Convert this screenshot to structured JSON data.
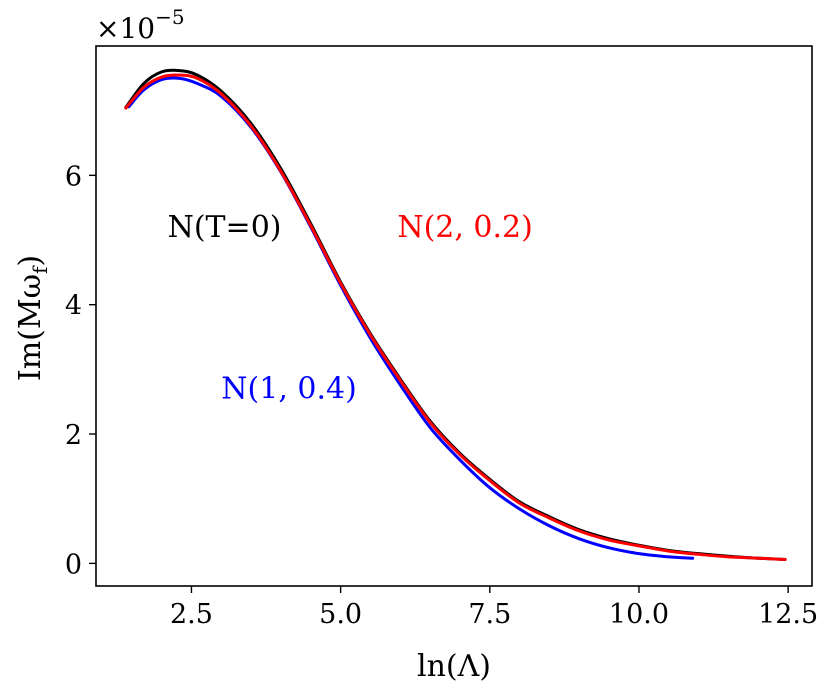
{
  "chart_data": {
    "type": "line",
    "title": "",
    "xlabel": "ln(Λ)",
    "ylabel": "Im(Mω",
    "ylabel_sub": "f",
    "ylabel_close": ")",
    "y_multiplier_base": "×10",
    "y_multiplier_exp": "−5",
    "xlim": [
      0.9,
      12.9
    ],
    "ylim": [
      -0.35,
      8.0
    ],
    "xticks": [
      2.5,
      5.0,
      7.5,
      10.0,
      12.5
    ],
    "xtick_labels": [
      "2.5",
      "5.0",
      "7.5",
      "10.0",
      "12.5"
    ],
    "yticks": [
      0,
      2,
      4,
      6
    ],
    "ytick_labels": [
      "0",
      "2",
      "4",
      "6"
    ],
    "grid": false,
    "legend": "none",
    "series": [
      {
        "name": "N(T=0)",
        "color": "#000000",
        "x": [
          1.4,
          1.7,
          2.0,
          2.3,
          2.6,
          3.0,
          3.5,
          4.0,
          4.5,
          5.0,
          5.5,
          6.0,
          6.5,
          7.0,
          7.5,
          8.0,
          8.5,
          9.0,
          9.5,
          10.0,
          10.5,
          11.0,
          11.5,
          12.0,
          12.45
        ],
        "y": [
          7.05,
          7.42,
          7.6,
          7.62,
          7.55,
          7.3,
          6.8,
          6.1,
          5.25,
          4.35,
          3.55,
          2.85,
          2.2,
          1.7,
          1.3,
          0.95,
          0.72,
          0.52,
          0.38,
          0.28,
          0.2,
          0.15,
          0.11,
          0.08,
          0.06
        ]
      },
      {
        "name": "N(2, 0.2)",
        "color": "#ff0000",
        "x": [
          1.4,
          1.7,
          2.0,
          2.3,
          2.6,
          3.0,
          3.5,
          4.0,
          4.5,
          5.0,
          5.5,
          6.0,
          6.5,
          7.0,
          7.5,
          8.0,
          8.5,
          9.0,
          9.5,
          10.0,
          10.5,
          11.0,
          11.5,
          12.0,
          12.45
        ],
        "y": [
          7.04,
          7.36,
          7.52,
          7.55,
          7.5,
          7.26,
          6.76,
          6.06,
          5.22,
          4.33,
          3.53,
          2.83,
          2.18,
          1.68,
          1.28,
          0.93,
          0.7,
          0.5,
          0.36,
          0.27,
          0.19,
          0.14,
          0.1,
          0.08,
          0.06
        ]
      },
      {
        "name": "N(1, 0.4)",
        "color": "#0000ff",
        "x": [
          1.45,
          1.7,
          2.0,
          2.3,
          2.6,
          3.0,
          3.5,
          4.0,
          4.5,
          5.0,
          5.5,
          6.0,
          6.5,
          7.0,
          7.5,
          8.0,
          8.5,
          9.0,
          9.5,
          10.0,
          10.5,
          10.9
        ],
        "y": [
          7.06,
          7.32,
          7.48,
          7.5,
          7.42,
          7.22,
          6.74,
          6.05,
          5.2,
          4.3,
          3.48,
          2.76,
          2.1,
          1.6,
          1.17,
          0.84,
          0.58,
          0.38,
          0.24,
          0.15,
          0.1,
          0.08
        ]
      }
    ],
    "annotations": [
      {
        "text": "N(T=0)",
        "x": 2.1,
        "y": 5.05,
        "color": "#000000"
      },
      {
        "text": "N(2, 0.2)",
        "x": 5.95,
        "y": 5.05,
        "color": "#ff0000"
      },
      {
        "text": "N(1, 0.4)",
        "x": 3.0,
        "y": 2.55,
        "color": "#0000ff"
      }
    ]
  }
}
